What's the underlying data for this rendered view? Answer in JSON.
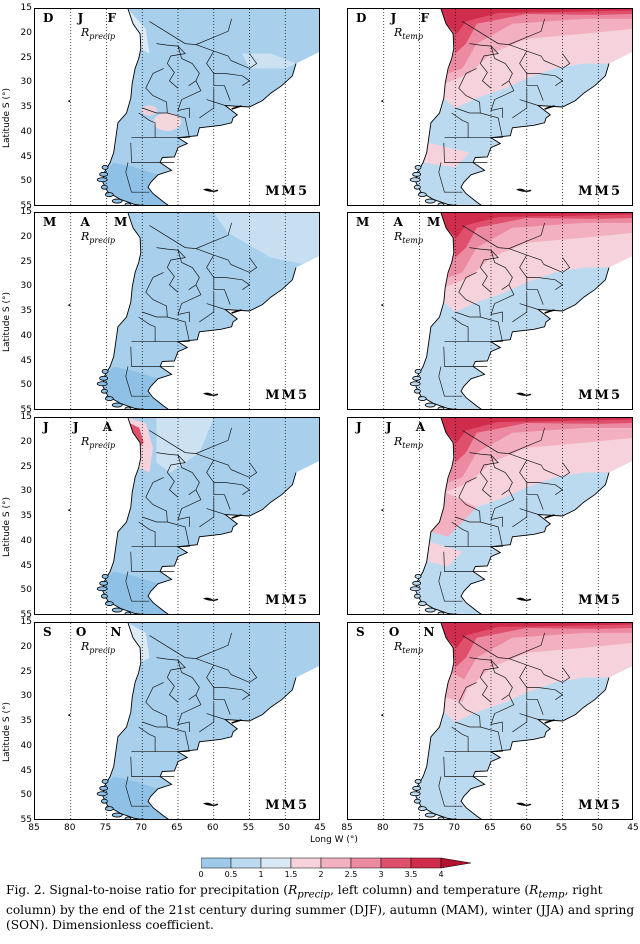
{
  "figure": {
    "model_label": "MM5",
    "rows": [
      {
        "season": "D J F",
        "precip_sub": "precip",
        "temp_sub": "temp"
      },
      {
        "season": "M A M",
        "precip_sub": "precip",
        "temp_sub": "temp"
      },
      {
        "season": "J J A",
        "precip_sub": "precip",
        "temp_sub": "temp"
      },
      {
        "season": "S O N",
        "precip_sub": "precip",
        "temp_sub": "temp"
      }
    ],
    "r_symbol": "R",
    "y_axis_label": "Latitude S (°)",
    "y_ticks": [
      "15",
      "20",
      "25",
      "30",
      "35",
      "40",
      "45",
      "50",
      "55"
    ],
    "x_axis_label": "Long W (°)",
    "x_ticks": [
      "85",
      "80",
      "75",
      "70",
      "65",
      "60",
      "55",
      "50",
      "45"
    ]
  },
  "colorbar": {
    "ticks": [
      "0",
      "0.5",
      "1",
      "1.5",
      "2",
      "2.5",
      "3",
      "3.5",
      "4"
    ],
    "colors": [
      "#9ec9e8",
      "#bcdaef",
      "#dbe9f5",
      "#f6d3dc",
      "#f2b0c0",
      "#ec8aa2",
      "#e0506d",
      "#d02c4c",
      "#b3122f"
    ]
  },
  "caption": {
    "prefix": "Fig. 2. Signal-to-noise ratio for precipitation (",
    "r1": "R",
    "r1_sub": "precip",
    "mid1": ", left column) and temperature (",
    "r2": "R",
    "r2_sub": "temp",
    "suffix": ", right column) by the end of the 21st century during summer (DJF), autumn (MAM), winter (JJA) and spring (SON). Dimensionless coefficient."
  }
}
